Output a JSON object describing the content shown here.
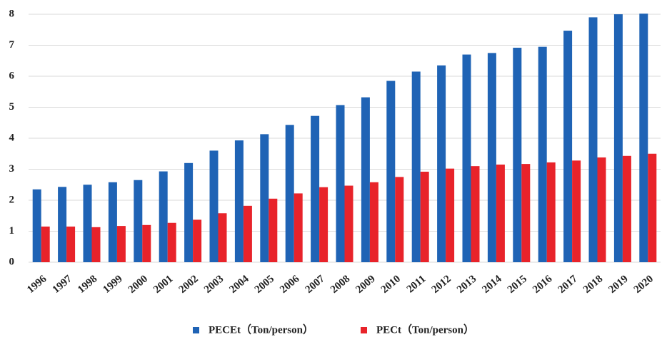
{
  "chart_data": {
    "type": "bar",
    "categories": [
      "1996",
      "1997",
      "1998",
      "1999",
      "2000",
      "2001",
      "2002",
      "2003",
      "2004",
      "2005",
      "2006",
      "2007",
      "2008",
      "2009",
      "2010",
      "2011",
      "2012",
      "2013",
      "2014",
      "2015",
      "2016",
      "2017",
      "2018",
      "2019",
      "2020"
    ],
    "series": [
      {
        "name": "PECEt（Ton/person）",
        "color": "#1f63b5",
        "values": [
          2.35,
          2.43,
          2.5,
          2.58,
          2.65,
          2.93,
          3.2,
          3.6,
          3.93,
          4.13,
          4.43,
          4.72,
          5.07,
          5.32,
          5.85,
          6.15,
          6.35,
          6.7,
          6.75,
          6.92,
          6.95,
          7.47,
          7.9,
          8.0,
          8.02
        ]
      },
      {
        "name": "PECt（Ton/person）",
        "color": "#e8232a",
        "values": [
          1.15,
          1.15,
          1.13,
          1.17,
          1.2,
          1.27,
          1.37,
          1.58,
          1.82,
          2.05,
          2.22,
          2.42,
          2.47,
          2.58,
          2.75,
          2.92,
          3.02,
          3.1,
          3.15,
          3.17,
          3.22,
          3.28,
          3.38,
          3.43,
          3.5
        ]
      }
    ],
    "ylim": [
      0,
      8
    ],
    "yticks": [
      0,
      1,
      2,
      3,
      4,
      5,
      6,
      7,
      8
    ],
    "grid": true,
    "legend": "bottom"
  }
}
